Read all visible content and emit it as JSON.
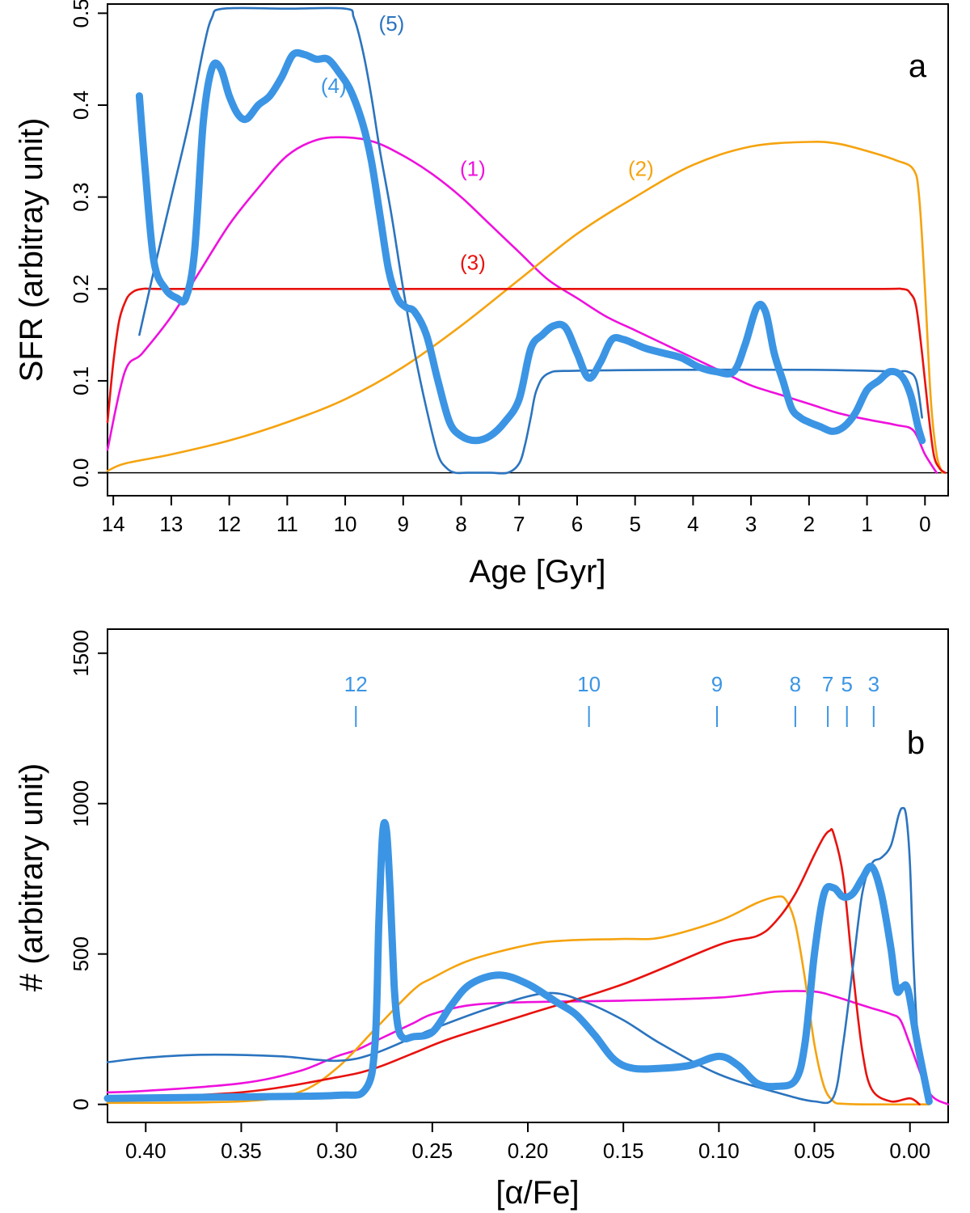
{
  "chart_data": [
    {
      "panel": "a",
      "type": "line",
      "xlabel": "Age [Gyr]",
      "ylabel": "SFR (arbitray unit)",
      "xlim": [
        14.1,
        -0.4
      ],
      "ylim": [
        -0.025,
        0.51
      ],
      "xticks": [
        14,
        13,
        12,
        11,
        10,
        9,
        8,
        7,
        6,
        5,
        4,
        3,
        2,
        1,
        0
      ],
      "yticks": [
        0.0,
        0.1,
        0.2,
        0.3,
        0.4,
        0.5
      ],
      "ytick_labels": [
        "0.0",
        "0.1",
        "0.2",
        "0.3",
        "0.4",
        "0.5"
      ],
      "baseline": 0,
      "series": [
        {
          "name": "(1)",
          "color": "#ee11dd",
          "weight": "thin",
          "x": [
            14.1,
            13.8,
            13.5,
            13.0,
            12.5,
            12.0,
            11.5,
            11.0,
            10.5,
            10.0,
            9.5,
            9.0,
            8.5,
            8.0,
            7.5,
            7.0,
            6.5,
            6.0,
            5.5,
            5.0,
            4.5,
            4.0,
            3.5,
            3.0,
            2.5,
            2.0,
            1.5,
            1.0,
            0.5,
            0.2,
            0.0,
            -0.2
          ],
          "y": [
            0.025,
            0.11,
            0.13,
            0.17,
            0.22,
            0.27,
            0.31,
            0.345,
            0.362,
            0.365,
            0.36,
            0.345,
            0.325,
            0.3,
            0.27,
            0.24,
            0.21,
            0.19,
            0.17,
            0.155,
            0.14,
            0.125,
            0.11,
            0.095,
            0.085,
            0.075,
            0.065,
            0.058,
            0.052,
            0.046,
            0.02,
            0.0
          ]
        },
        {
          "name": "(2)",
          "color": "#f5a30f",
          "weight": "thin",
          "x": [
            14.1,
            13.8,
            13.0,
            12.0,
            11.0,
            10.0,
            9.0,
            8.0,
            7.0,
            6.0,
            5.0,
            4.0,
            3.0,
            2.0,
            1.5,
            1.0,
            0.5,
            0.2,
            0.1,
            0.0,
            -0.1,
            -0.2,
            -0.3
          ],
          "y": [
            0.002,
            0.01,
            0.02,
            0.035,
            0.055,
            0.08,
            0.115,
            0.16,
            0.21,
            0.26,
            0.3,
            0.335,
            0.355,
            0.36,
            0.358,
            0.35,
            0.34,
            0.33,
            0.3,
            0.2,
            0.08,
            0.02,
            0.0
          ]
        },
        {
          "name": "(3)",
          "color": "#e8120e",
          "weight": "thin",
          "x": [
            14.1,
            14.0,
            13.9,
            13.8,
            13.7,
            13.5,
            13.0,
            10.0,
            5.0,
            1.0,
            0.4,
            0.25,
            0.15,
            0.05,
            -0.05,
            -0.15,
            -0.25,
            -0.35
          ],
          "y": [
            0.055,
            0.12,
            0.165,
            0.185,
            0.195,
            0.2,
            0.2,
            0.2,
            0.2,
            0.2,
            0.2,
            0.195,
            0.18,
            0.13,
            0.07,
            0.02,
            0.005,
            0.0
          ]
        },
        {
          "name": "(4)",
          "color": "#3b95e4",
          "weight": "thick",
          "x": [
            13.55,
            13.45,
            13.3,
            13.1,
            12.9,
            12.75,
            12.6,
            12.45,
            12.3,
            12.15,
            12.0,
            11.85,
            11.7,
            11.5,
            11.3,
            11.1,
            10.9,
            10.7,
            10.5,
            10.3,
            10.1,
            9.9,
            9.7,
            9.55,
            9.4,
            9.25,
            9.1,
            8.95,
            8.8,
            8.6,
            8.4,
            8.2,
            8.0,
            7.75,
            7.5,
            7.25,
            7.0,
            6.8,
            6.6,
            6.4,
            6.2,
            6.0,
            5.8,
            5.6,
            5.4,
            5.2,
            5.0,
            4.8,
            4.5,
            4.2,
            3.9,
            3.6,
            3.3,
            3.1,
            2.9,
            2.75,
            2.6,
            2.45,
            2.3,
            2.15,
            2.0,
            1.8,
            1.6,
            1.4,
            1.2,
            1.0,
            0.8,
            0.6,
            0.4,
            0.25,
            0.12,
            0.05
          ],
          "y": [
            0.41,
            0.33,
            0.23,
            0.2,
            0.19,
            0.19,
            0.24,
            0.38,
            0.44,
            0.44,
            0.41,
            0.39,
            0.385,
            0.4,
            0.41,
            0.43,
            0.455,
            0.455,
            0.45,
            0.45,
            0.435,
            0.415,
            0.38,
            0.34,
            0.28,
            0.22,
            0.19,
            0.18,
            0.175,
            0.15,
            0.1,
            0.055,
            0.04,
            0.035,
            0.04,
            0.055,
            0.08,
            0.135,
            0.15,
            0.16,
            0.158,
            0.13,
            0.103,
            0.12,
            0.145,
            0.145,
            0.14,
            0.135,
            0.13,
            0.125,
            0.115,
            0.11,
            0.11,
            0.14,
            0.18,
            0.175,
            0.13,
            0.1,
            0.07,
            0.06,
            0.055,
            0.05,
            0.045,
            0.05,
            0.065,
            0.09,
            0.1,
            0.11,
            0.105,
            0.085,
            0.05,
            0.035
          ]
        },
        {
          "name": "(5)",
          "color": "#2b74bf",
          "weight": "thin",
          "x": [
            13.55,
            13.3,
            13.0,
            12.7,
            12.45,
            12.3,
            12.1,
            11.0,
            10.0,
            9.85,
            9.7,
            9.55,
            9.4,
            9.2,
            9.0,
            8.8,
            8.6,
            8.4,
            8.25,
            8.1,
            7.9,
            7.5,
            7.2,
            7.0,
            6.9,
            6.8,
            6.7,
            6.5,
            6.0,
            4.0,
            2.0,
            1.0,
            0.5,
            0.3,
            0.15,
            0.05
          ],
          "y": [
            0.15,
            0.22,
            0.3,
            0.38,
            0.46,
            0.495,
            0.505,
            0.505,
            0.505,
            0.495,
            0.46,
            0.41,
            0.35,
            0.28,
            0.2,
            0.13,
            0.07,
            0.02,
            0.005,
            0.0,
            0.0,
            0.0,
            0.0,
            0.01,
            0.03,
            0.06,
            0.09,
            0.108,
            0.111,
            0.112,
            0.112,
            0.111,
            0.11,
            0.11,
            0.1,
            0.06
          ]
        }
      ],
      "annotations": [
        {
          "text": "(1)",
          "x": 7.8,
          "y": 0.323,
          "color": "#ee11dd"
        },
        {
          "text": "(2)",
          "x": 4.9,
          "y": 0.323,
          "color": "#f5a30f"
        },
        {
          "text": "(3)",
          "x": 7.8,
          "y": 0.221,
          "color": "#e8120e"
        },
        {
          "text": "(4)",
          "x": 10.2,
          "y": 0.413,
          "color": "#3b95e4"
        },
        {
          "text": "(5)",
          "x": 9.2,
          "y": 0.481,
          "color": "#2b74bf"
        }
      ],
      "panel_label": "a"
    },
    {
      "panel": "b",
      "type": "line",
      "xlabel": "[α/Fe]",
      "ylabel": "# (arbitrary unit)",
      "xlim": [
        0.42,
        -0.02
      ],
      "ylim": [
        -60,
        1580
      ],
      "xticks": [
        0.4,
        0.35,
        0.3,
        0.25,
        0.2,
        0.15,
        0.1,
        0.05,
        0.0
      ],
      "xtick_labels": [
        "0.40",
        "0.35",
        "0.30",
        "0.25",
        "0.20",
        "0.15",
        "0.10",
        "0.05",
        "0.00"
      ],
      "yticks": [
        0,
        500,
        1000,
        1500
      ],
      "ytick_labels": [
        "0",
        "500",
        "1000",
        "1500"
      ],
      "age_markers": [
        {
          "label": "12",
          "x": 0.29
        },
        {
          "label": "10",
          "x": 0.168
        },
        {
          "label": "9",
          "x": 0.101
        },
        {
          "label": "8",
          "x": 0.06
        },
        {
          "label": "7",
          "x": 0.043
        },
        {
          "label": "5",
          "x": 0.033
        },
        {
          "label": "3",
          "x": 0.019
        }
      ],
      "series": [
        {
          "name": "(1)",
          "color": "#ee11dd",
          "weight": "thin",
          "x": [
            0.42,
            0.4,
            0.35,
            0.32,
            0.3,
            0.29,
            0.28,
            0.27,
            0.26,
            0.25,
            0.23,
            0.2,
            0.15,
            0.1,
            0.07,
            0.05,
            0.04,
            0.03,
            0.02,
            0.01,
            0.005,
            0.0,
            -0.01,
            -0.02
          ],
          "y": [
            40,
            45,
            70,
            110,
            160,
            180,
            210,
            240,
            270,
            300,
            330,
            340,
            345,
            355,
            375,
            375,
            360,
            340,
            320,
            300,
            280,
            200,
            40,
            0
          ]
        },
        {
          "name": "(2)",
          "color": "#f5a30f",
          "weight": "thin",
          "x": [
            0.42,
            0.35,
            0.32,
            0.3,
            0.28,
            0.26,
            0.25,
            0.23,
            0.2,
            0.18,
            0.15,
            0.13,
            0.1,
            0.08,
            0.07,
            0.065,
            0.06,
            0.055,
            0.05,
            0.045,
            0.04,
            0.035,
            0.02,
            -0.01
          ],
          "y": [
            5,
            10,
            40,
            120,
            250,
            380,
            420,
            480,
            530,
            545,
            550,
            555,
            610,
            670,
            690,
            680,
            600,
            420,
            200,
            60,
            10,
            2,
            0,
            0
          ]
        },
        {
          "name": "(3)",
          "color": "#e8120e",
          "weight": "thin",
          "x": [
            0.42,
            0.35,
            0.3,
            0.28,
            0.26,
            0.24,
            0.2,
            0.15,
            0.1,
            0.08,
            0.07,
            0.06,
            0.05,
            0.045,
            0.042,
            0.04,
            0.035,
            0.03,
            0.025,
            0.02,
            0.01,
            0.0,
            -0.005
          ],
          "y": [
            20,
            40,
            90,
            120,
            170,
            220,
            300,
            400,
            530,
            560,
            610,
            700,
            830,
            890,
            910,
            900,
            760,
            450,
            180,
            50,
            10,
            20,
            0
          ]
        },
        {
          "name": "(4)",
          "color": "#3b95e4",
          "weight": "thick",
          "x": [
            0.42,
            0.35,
            0.3,
            0.285,
            0.28,
            0.278,
            0.276,
            0.274,
            0.272,
            0.27,
            0.268,
            0.265,
            0.26,
            0.25,
            0.24,
            0.23,
            0.215,
            0.2,
            0.185,
            0.175,
            0.165,
            0.155,
            0.145,
            0.13,
            0.115,
            0.1,
            0.09,
            0.08,
            0.07,
            0.06,
            0.055,
            0.05,
            0.045,
            0.04,
            0.035,
            0.03,
            0.025,
            0.02,
            0.015,
            0.01,
            0.007,
            0.004,
            0.001,
            -0.004,
            -0.01
          ],
          "y": [
            20,
            25,
            30,
            50,
            200,
            600,
            900,
            910,
            700,
            400,
            260,
            220,
            225,
            240,
            330,
            400,
            430,
            400,
            340,
            300,
            230,
            150,
            120,
            120,
            130,
            160,
            130,
            70,
            60,
            80,
            200,
            500,
            700,
            720,
            690,
            700,
            750,
            790,
            700,
            520,
            380,
            390,
            380,
            200,
            10
          ]
        },
        {
          "name": "(5)",
          "color": "#2b74bf",
          "weight": "thin",
          "x": [
            0.42,
            0.4,
            0.37,
            0.33,
            0.3,
            0.28,
            0.25,
            0.22,
            0.19,
            0.17,
            0.15,
            0.13,
            0.1,
            0.07,
            0.05,
            0.04,
            0.035,
            0.03,
            0.025,
            0.02,
            0.015,
            0.01,
            0.006,
            0.004,
            0.002,
            0.0,
            -0.002,
            -0.005,
            -0.01
          ],
          "y": [
            140,
            155,
            165,
            160,
            145,
            170,
            250,
            320,
            370,
            340,
            280,
            200,
            100,
            40,
            10,
            25,
            200,
            450,
            700,
            800,
            820,
            860,
            960,
            985,
            960,
            800,
            450,
            150,
            20
          ]
        }
      ],
      "panel_label": "b"
    }
  ]
}
